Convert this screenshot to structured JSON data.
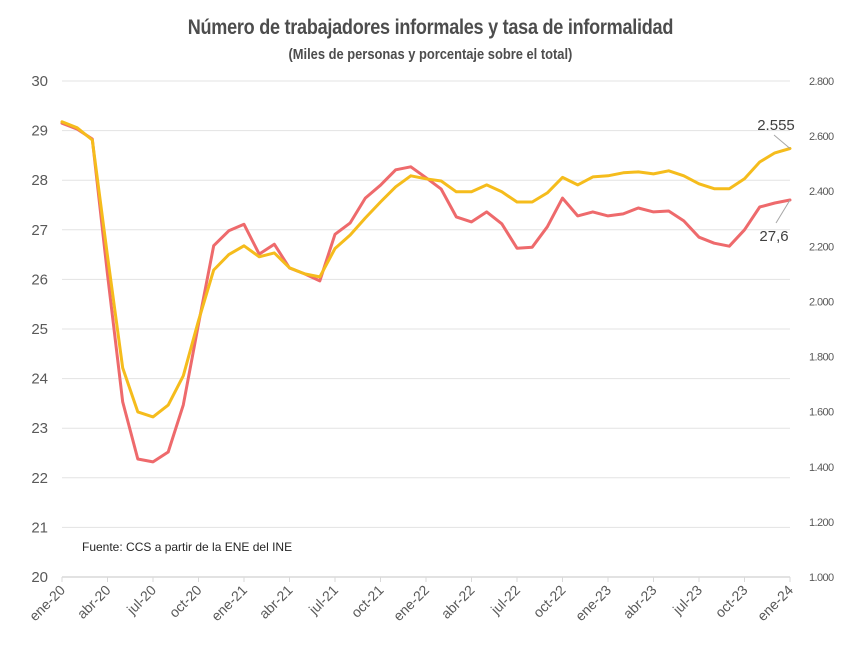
{
  "chart_data": {
    "type": "line",
    "title": "Número de trabajadores informales y tasa de informalidad",
    "subtitle": "(Miles de personas y porcentaje sobre el total)",
    "source": "Fuente: CCS a partir de la ENE del INE",
    "x_tick_labels": [
      "ene-20",
      "abr-20",
      "jul-20",
      "oct-20",
      "ene-21",
      "abr-21",
      "jul-21",
      "oct-21",
      "ene-22",
      "abr-22",
      "jul-22",
      "oct-22",
      "ene-23",
      "abr-23",
      "jul-23",
      "oct-23",
      "ene-24"
    ],
    "months_count": 49,
    "y_left": {
      "min": 20,
      "max": 30,
      "ticks": [
        "20",
        "21",
        "22",
        "23",
        "24",
        "25",
        "26",
        "27",
        "28",
        "29",
        "30"
      ]
    },
    "y_right": {
      "min": 1000,
      "max": 2800,
      "ticks": [
        "1.000",
        "1.200",
        "1.400",
        "1.600",
        "1.800",
        "2.000",
        "2.200",
        "2.400",
        "2.600",
        "2.800"
      ]
    },
    "grid": true,
    "series": [
      {
        "name": "Tasa de informalidad",
        "axis": "left",
        "color": "#EE6A6C",
        "values": [
          29.15,
          29.03,
          28.83,
          26.1,
          23.53,
          22.38,
          22.32,
          22.52,
          23.47,
          25.1,
          26.68,
          26.98,
          27.11,
          26.51,
          26.71,
          26.23,
          26.11,
          25.97,
          26.91,
          27.14,
          27.64,
          27.9,
          28.21,
          28.27,
          28.05,
          27.82,
          27.26,
          27.16,
          27.36,
          27.12,
          26.63,
          26.65,
          27.06,
          27.64,
          27.28,
          27.36,
          27.28,
          27.32,
          27.44,
          27.36,
          27.38,
          27.18,
          26.85,
          26.73,
          26.67,
          27.0,
          27.46,
          27.54,
          27.6
        ],
        "end_label": "27,6"
      },
      {
        "name": "Número de trabajadores informales",
        "axis": "right",
        "color": "#F5BC1C",
        "values": [
          2652,
          2630,
          2586,
          2165,
          1759,
          1599,
          1581,
          1624,
          1730,
          1930,
          2114,
          2170,
          2202,
          2162,
          2176,
          2122,
          2100,
          2089,
          2192,
          2241,
          2303,
          2361,
          2416,
          2456,
          2445,
          2437,
          2398,
          2398,
          2423,
          2398,
          2361,
          2361,
          2394,
          2450,
          2423,
          2452,
          2456,
          2467,
          2470,
          2463,
          2474,
          2456,
          2427,
          2409,
          2409,
          2445,
          2506,
          2539,
          2555
        ],
        "end_label": "2.555"
      }
    ]
  }
}
